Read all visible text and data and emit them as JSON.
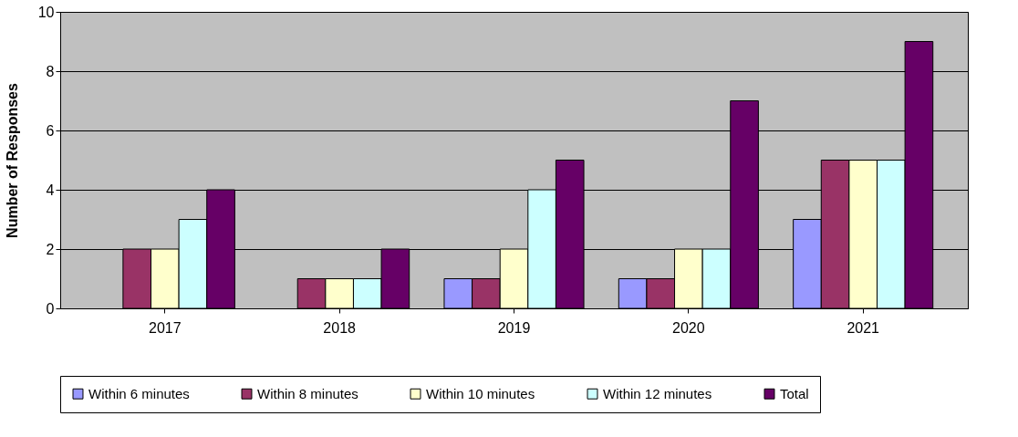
{
  "chart_data": {
    "type": "bar",
    "ylabel": "Number of Responses",
    "categories": [
      "2017",
      "2018",
      "2019",
      "2020",
      "2021"
    ],
    "series": [
      {
        "name": "Within 6 minutes",
        "color": "#9999ff",
        "values": [
          null,
          null,
          1,
          1,
          3
        ]
      },
      {
        "name": "Within 8 minutes",
        "color": "#993366",
        "values": [
          2,
          1,
          1,
          1,
          5
        ]
      },
      {
        "name": "Within 10 minutes",
        "color": "#ffffcc",
        "values": [
          2,
          1,
          2,
          2,
          5
        ]
      },
      {
        "name": "Within 12 minutes",
        "color": "#ccffff",
        "values": [
          3,
          1,
          4,
          2,
          5
        ]
      },
      {
        "name": "Total",
        "color": "#660066",
        "values": [
          4,
          2,
          5,
          7,
          9
        ]
      }
    ],
    "ylim": [
      0,
      10
    ],
    "yticks": [
      0,
      2,
      4,
      6,
      8,
      10
    ],
    "grid": "y",
    "legend": "bottom"
  }
}
